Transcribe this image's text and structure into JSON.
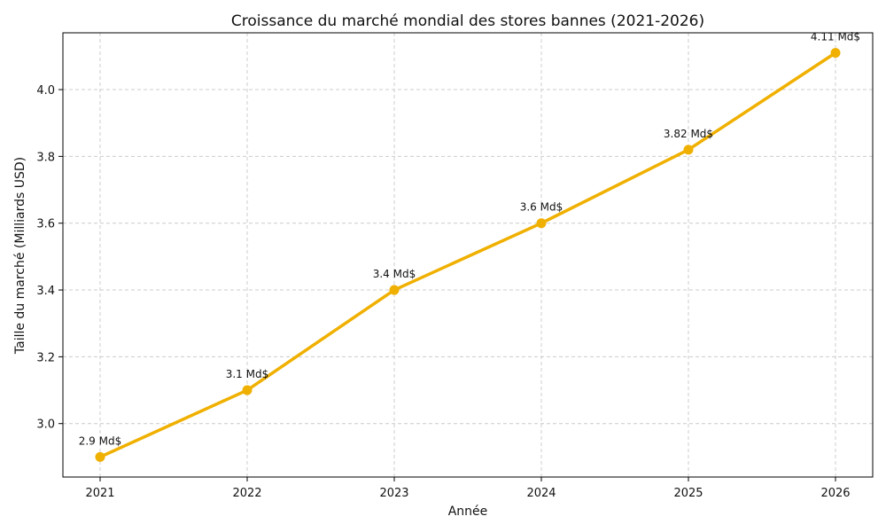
{
  "chart_data": {
    "type": "line",
    "title": "Croissance du marché mondial des stores bannes (2021-2026)",
    "xlabel": "Année",
    "ylabel": "Taille du marché (Milliards USD)",
    "x": [
      "2021",
      "2022",
      "2023",
      "2024",
      "2025",
      "2026"
    ],
    "series": [
      {
        "values": [
          2.9,
          3.1,
          3.4,
          3.6,
          3.82,
          4.11
        ],
        "labels": [
          "2.9 Md$",
          "3.1 Md$",
          "3.4 Md$",
          "3.6 Md$",
          "3.82 Md$",
          "4.11 Md$"
        ],
        "color": "#f0b000"
      }
    ],
    "yticks": [
      "3.0",
      "3.2",
      "3.4",
      "3.6",
      "3.8",
      "4.0"
    ],
    "ylim": [
      2.84,
      4.17
    ],
    "grid": true,
    "legend": "none"
  }
}
